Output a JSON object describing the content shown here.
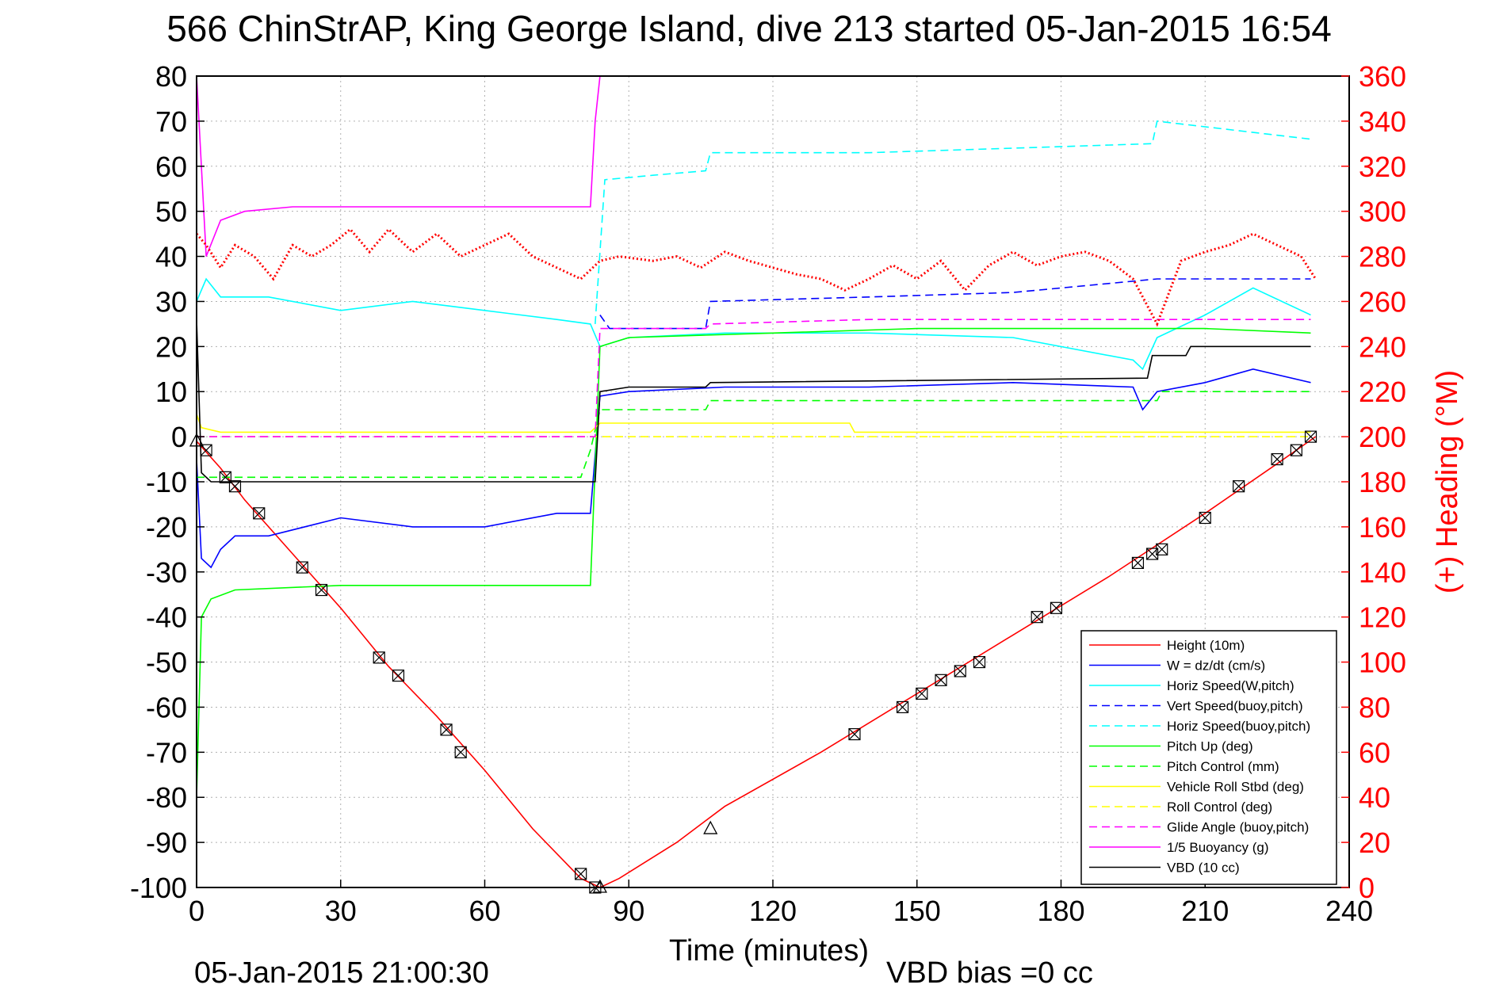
{
  "title": "566 ChinStrAP, King George Island, dive 213 started 05-Jan-2015 16:54",
  "footer_left": "05-Jan-2015 21:00:30",
  "footer_right": "VBD bias =0 cc",
  "colors": {
    "height": "#ff0000",
    "w": "#0000ff",
    "horiz": "#00ffff",
    "pitch": "#00ff00",
    "roll": "#ffff00",
    "glide": "#ff00ff",
    "buoy": "#ff00ff",
    "vbd": "#000000",
    "heading": "#ff0000",
    "grid": "#b0b0b0"
  },
  "chart_data": {
    "type": "line",
    "xlabel": "Time (minutes)",
    "ylabel_right": "(+) Heading (°M)",
    "xlim": [
      0,
      240
    ],
    "ylim": [
      -100,
      80
    ],
    "y2lim": [
      0,
      360
    ],
    "xticks": [
      0,
      30,
      60,
      90,
      120,
      150,
      180,
      210,
      240
    ],
    "yticks": [
      80,
      70,
      60,
      50,
      40,
      30,
      20,
      10,
      0,
      -10,
      -20,
      -30,
      -40,
      -50,
      -60,
      -70,
      -80,
      -90,
      -100
    ],
    "y2ticks": [
      360,
      340,
      320,
      300,
      280,
      260,
      240,
      220,
      200,
      180,
      160,
      140,
      120,
      100,
      80,
      60,
      40,
      20,
      0
    ],
    "grid": true,
    "legend_position": "bottom-right",
    "legend": [
      {
        "label": "Height (10m)",
        "color": "#ff0000",
        "dash": false
      },
      {
        "label": "W = dz/dt (cm/s)",
        "color": "#0000ff",
        "dash": false
      },
      {
        "label": "Horiz Speed(W,pitch)",
        "color": "#00ffff",
        "dash": false
      },
      {
        "label": "Vert Speed(buoy,pitch)",
        "color": "#0000ff",
        "dash": true
      },
      {
        "label": "Horiz Speed(buoy,pitch)",
        "color": "#00ffff",
        "dash": true
      },
      {
        "label": "Pitch Up (deg)",
        "color": "#00ff00",
        "dash": false
      },
      {
        "label": "Pitch Control (mm)",
        "color": "#00ff00",
        "dash": true
      },
      {
        "label": "Vehicle Roll Stbd (deg)",
        "color": "#ffff00",
        "dash": false
      },
      {
        "label": "Roll Control (deg)",
        "color": "#ffff00",
        "dash": true
      },
      {
        "label": "Glide Angle (buoy,pitch)",
        "color": "#ff00ff",
        "dash": true
      },
      {
        "label": "1/5 Buoyancy (g)",
        "color": "#ff00ff",
        "dash": false
      },
      {
        "label": "VBD (10 cc)",
        "color": "#000000",
        "dash": false
      }
    ],
    "series": [
      {
        "name": "Height (10m)",
        "x": [
          0,
          5,
          10,
          20,
          30,
          40,
          50,
          60,
          70,
          80,
          84,
          88,
          100,
          110,
          130,
          150,
          170,
          190,
          210,
          225,
          233
        ],
        "y": [
          -1,
          -7,
          -14,
          -26,
          -38,
          -51,
          -62,
          -74,
          -87,
          -98,
          -100,
          -98,
          -90,
          -82,
          -70,
          -57,
          -44,
          -31,
          -17,
          -6,
          0
        ]
      },
      {
        "name": "W = dz/dt (cm/s)",
        "x": [
          0,
          1,
          3,
          5,
          8,
          15,
          30,
          45,
          60,
          75,
          82,
          84,
          90,
          110,
          140,
          170,
          195,
          197,
          200,
          210,
          220,
          232
        ],
        "y": [
          -5,
          -27,
          -29,
          -25,
          -22,
          -22,
          -18,
          -20,
          -20,
          -17,
          -17,
          9,
          10,
          11,
          11,
          12,
          11,
          6,
          10,
          12,
          15,
          12
        ]
      },
      {
        "name": "Horiz Speed(W,pitch)",
        "x": [
          0,
          2,
          5,
          15,
          30,
          45,
          60,
          75,
          82,
          84,
          90,
          110,
          140,
          170,
          195,
          197,
          200,
          210,
          220,
          232
        ],
        "y": [
          30,
          35,
          31,
          31,
          28,
          30,
          28,
          26,
          25,
          20,
          22,
          23,
          23,
          22,
          17,
          15,
          22,
          27,
          33,
          27
        ]
      },
      {
        "name": "Vert Speed(buoy,pitch)",
        "x": [
          84,
          86,
          106,
          107,
          140,
          170,
          180,
          200,
          232
        ],
        "y": [
          27,
          24,
          24,
          30,
          31,
          32,
          33,
          35,
          35
        ]
      },
      {
        "name": "Horiz Speed(buoy,pitch)",
        "x": [
          83,
          85,
          95,
          106,
          107,
          140,
          170,
          199,
          200,
          232
        ],
        "y": [
          25,
          57,
          58,
          59,
          63,
          63,
          64,
          65,
          70,
          66
        ]
      },
      {
        "name": "Pitch Up (deg)",
        "x": [
          0,
          1,
          3,
          8,
          30,
          60,
          82,
          84,
          90,
          120,
          150,
          180,
          210,
          232
        ],
        "y": [
          -80,
          -40,
          -36,
          -34,
          -33,
          -33,
          -33,
          20,
          22,
          23,
          24,
          24,
          24,
          23
        ]
      },
      {
        "name": "Pitch Control (mm)",
        "x": [
          0,
          3,
          80,
          82,
          84,
          106,
          107,
          200,
          201,
          232
        ],
        "y": [
          -9,
          -9,
          -9,
          -3,
          6,
          6,
          8,
          8,
          10,
          10
        ]
      },
      {
        "name": "Vehicle Roll Stbd (deg)",
        "x": [
          0,
          1,
          5,
          30,
          60,
          82,
          84,
          90,
          136,
          137,
          180,
          232
        ],
        "y": [
          5,
          2,
          1,
          1,
          1,
          1,
          3,
          3,
          3,
          1,
          1,
          1
        ]
      },
      {
        "name": "Roll Control (deg)",
        "x": [
          0,
          232
        ],
        "y": [
          0,
          0
        ]
      },
      {
        "name": "Glide Angle (buoy,pitch)",
        "x": [
          0,
          83,
          84,
          106,
          107,
          140,
          200,
          232
        ],
        "y": [
          0,
          0,
          24,
          24,
          25,
          26,
          26,
          26
        ]
      },
      {
        "name": "1/5 Buoyancy (g)",
        "x": [
          0,
          2,
          5,
          10,
          20,
          82,
          83,
          84
        ],
        "y": [
          80,
          40,
          48,
          50,
          51,
          51,
          70,
          80
        ]
      },
      {
        "name": "VBD (10 cc)",
        "x": [
          0,
          1,
          3,
          82,
          83,
          84,
          90,
          106,
          107,
          198,
          199,
          206,
          207,
          232
        ],
        "y": [
          26,
          -8,
          -10,
          -10,
          -10,
          10,
          11,
          11,
          12,
          13,
          18,
          18,
          20,
          20
        ]
      },
      {
        "name": "Heading (+)",
        "axis": "right",
        "x": [
          0,
          2,
          5,
          8,
          12,
          16,
          20,
          24,
          28,
          32,
          36,
          40,
          45,
          50,
          55,
          60,
          65,
          70,
          75,
          80,
          84,
          88,
          95,
          100,
          105,
          110,
          115,
          120,
          125,
          130,
          135,
          140,
          145,
          150,
          155,
          160,
          165,
          170,
          175,
          180,
          185,
          190,
          195,
          200,
          205,
          210,
          215,
          220,
          225,
          230,
          233
        ],
        "y": [
          290,
          285,
          275,
          285,
          280,
          270,
          285,
          280,
          285,
          292,
          282,
          292,
          282,
          290,
          280,
          285,
          290,
          280,
          275,
          270,
          278,
          280,
          278,
          280,
          275,
          282,
          278,
          275,
          272,
          270,
          265,
          270,
          276,
          270,
          278,
          265,
          276,
          282,
          276,
          280,
          282,
          278,
          270,
          250,
          278,
          282,
          285,
          290,
          285,
          280,
          270
        ]
      }
    ],
    "markers": {
      "triangles": [
        [
          0,
          -1
        ],
        [
          107,
          -87
        ],
        [
          84,
          -100
        ]
      ],
      "boxed_x": [
        [
          2,
          -3
        ],
        [
          6,
          -9
        ],
        [
          8,
          -11
        ],
        [
          13,
          -17
        ],
        [
          22,
          -29
        ],
        [
          26,
          -34
        ],
        [
          38,
          -49
        ],
        [
          42,
          -53
        ],
        [
          52,
          -65
        ],
        [
          55,
          -70
        ],
        [
          80,
          -97
        ],
        [
          83,
          -100
        ],
        [
          137,
          -66
        ],
        [
          147,
          -60
        ],
        [
          151,
          -57
        ],
        [
          155,
          -54
        ],
        [
          159,
          -52
        ],
        [
          163,
          -50
        ],
        [
          175,
          -40
        ],
        [
          179,
          -38
        ],
        [
          196,
          -28
        ],
        [
          199,
          -26
        ],
        [
          201,
          -25
        ],
        [
          210,
          -18
        ],
        [
          217,
          -11
        ],
        [
          225,
          -5
        ],
        [
          229,
          -3
        ],
        [
          232,
          0
        ]
      ]
    }
  }
}
